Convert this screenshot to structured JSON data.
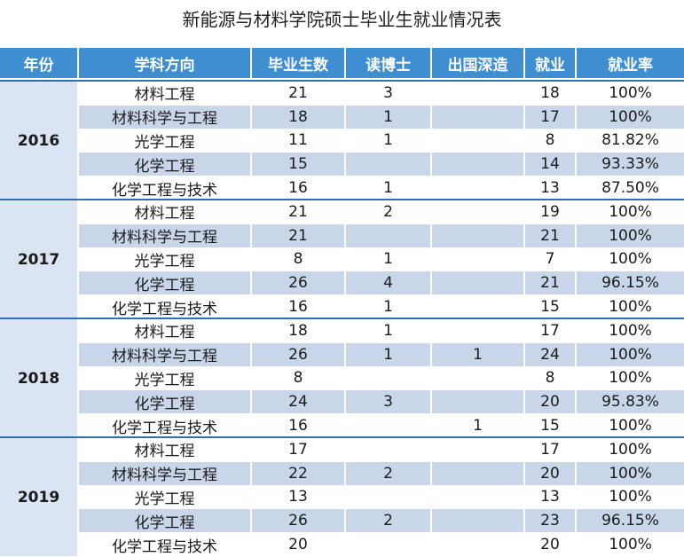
{
  "header": {
    "title": "新能源与材料学院硕士毕业生就业情况表"
  },
  "table": {
    "columns": [
      "年份",
      "学科方向",
      "毕业生数",
      "读博士",
      "出国深造",
      "就业",
      "就业率"
    ],
    "groups": [
      {
        "year": "2016",
        "rows": [
          [
            "材料工程",
            "21",
            "3",
            null,
            "18",
            "100%"
          ],
          [
            "材料科学与工程",
            "18",
            "1",
            null,
            "17",
            "100%"
          ],
          [
            "光学工程",
            "11",
            "1",
            null,
            "8",
            "81.82%"
          ],
          [
            "化学工程",
            "15",
            null,
            null,
            "14",
            "93.33%"
          ],
          [
            "化学工程与技术",
            "16",
            "1",
            null,
            "13",
            "87.50%"
          ]
        ]
      },
      {
        "year": "2017",
        "rows": [
          [
            "材料工程",
            "21",
            "2",
            null,
            "19",
            "100%"
          ],
          [
            "材料科学与工程",
            "21",
            null,
            null,
            "21",
            "100%"
          ],
          [
            "光学工程",
            "8",
            "1",
            null,
            "7",
            "100%"
          ],
          [
            "化学工程",
            "26",
            "4",
            null,
            "21",
            "96.15%"
          ],
          [
            "化学工程与技术",
            "16",
            "1",
            null,
            "15",
            "100%"
          ]
        ]
      },
      {
        "year": "2018",
        "rows": [
          [
            "材料工程",
            "18",
            "1",
            null,
            "17",
            "100%"
          ],
          [
            "材料科学与工程",
            "26",
            "1",
            "1",
            "24",
            "100%"
          ],
          [
            "光学工程",
            "8",
            null,
            null,
            "8",
            "100%"
          ],
          [
            "化学工程",
            "24",
            "3",
            null,
            "20",
            "95.83%"
          ],
          [
            "化学工程与技术",
            "16",
            null,
            "1",
            "15",
            "100%"
          ]
        ]
      },
      {
        "year": "2019",
        "rows": [
          [
            "材料工程",
            "17",
            null,
            null,
            "17",
            "100%"
          ],
          [
            "材料科学与工程",
            "22",
            "2",
            null,
            "20",
            "100%"
          ],
          [
            "光学工程",
            "13",
            null,
            null,
            "13",
            "100%"
          ],
          [
            "化学工程",
            "26",
            "2",
            null,
            "23",
            "96.15%"
          ],
          [
            "化学工程与技术",
            "20",
            null,
            null,
            "20",
            "100%"
          ]
        ]
      }
    ]
  }
}
